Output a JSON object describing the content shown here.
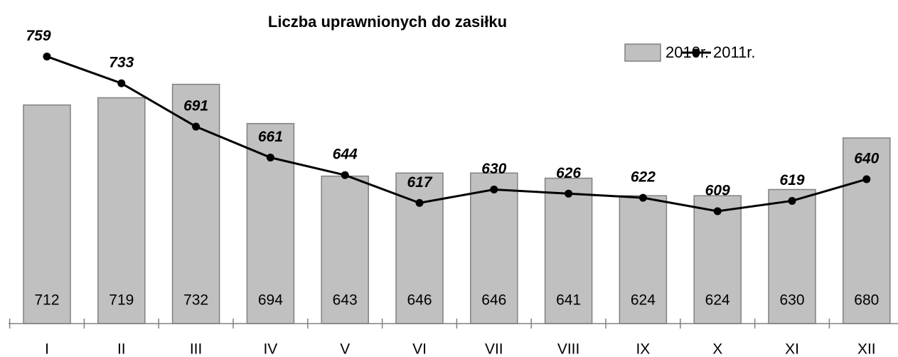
{
  "chart_data": {
    "type": "bar_line",
    "title": "Liczba uprawnionych do zasiłku",
    "categories": [
      "I",
      "II",
      "III",
      "IV",
      "V",
      "VI",
      "VII",
      "VIII",
      "IX",
      "X",
      "XI",
      "XII"
    ],
    "series": [
      {
        "name": "2010r.",
        "type": "bar",
        "color": "#c0c0c0",
        "values": [
          712,
          719,
          732,
          694,
          643,
          646,
          646,
          641,
          624,
          624,
          630,
          680
        ]
      },
      {
        "name": "2011r.",
        "type": "line",
        "color": "#000000",
        "values": [
          759,
          733,
          691,
          661,
          644,
          617,
          630,
          626,
          622,
          609,
          619,
          640
        ]
      }
    ],
    "ylim": [
      500,
      800
    ],
    "legend": "top-right"
  }
}
